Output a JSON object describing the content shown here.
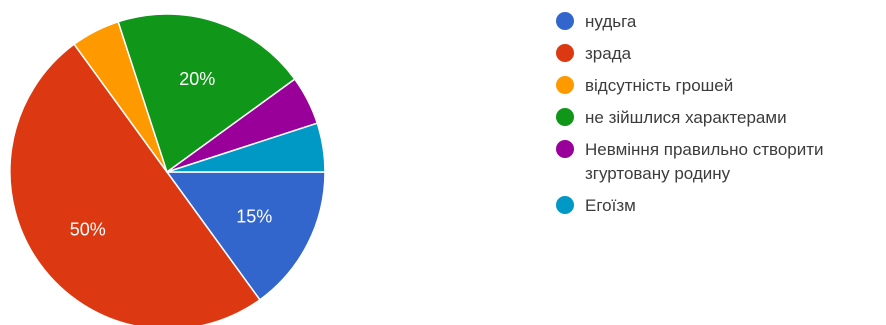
{
  "chart_data": {
    "type": "pie",
    "categories": [
      "нудьга",
      "зрада",
      "відсутність грошей",
      "не зійшлися характерами",
      "Невміння правильно створити згуртовану родину",
      "Егоїзм"
    ],
    "values": [
      15,
      50,
      5,
      20,
      5,
      5
    ],
    "colors": [
      "#3366cc",
      "#dc3912",
      "#ff9900",
      "#109618",
      "#990099",
      "#0099c6"
    ],
    "slice_labels": [
      "15%",
      "50%",
      "",
      "20%",
      "",
      ""
    ],
    "legend_position": "right"
  }
}
